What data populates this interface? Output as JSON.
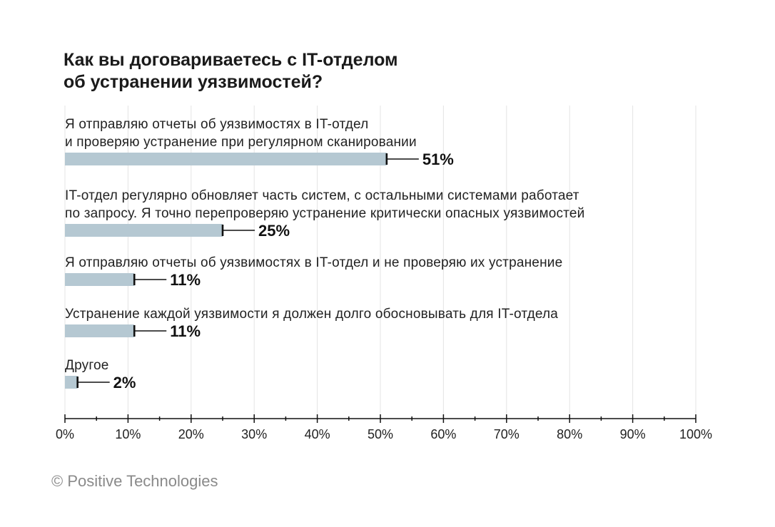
{
  "copyright": "© Positive Technologies",
  "chart_data": {
    "type": "bar",
    "orientation": "horizontal",
    "title_lines": [
      "Как вы договариваетесь с IT-отделом",
      "об устранении уязвимостей?"
    ],
    "categories": [
      [
        "Я отправляю отчеты об уязвимостях в IT-отдел",
        "и проверяю устранение при регулярном сканировании"
      ],
      [
        "IT-отдел регулярно обновляет часть систем, с остальными системами работает",
        "по запросу. Я точно перепроверяю устранение критически опасных уязвимостей"
      ],
      [
        "Я отправляю отчеты об уязвимостях в IT-отдел и не проверяю их устранение"
      ],
      [
        "Устранение каждой уязвимости я должен долго обосновывать для IT-отдела"
      ],
      [
        "Другое"
      ]
    ],
    "values": [
      51,
      25,
      11,
      11,
      2
    ],
    "value_labels": [
      "51%",
      "25%",
      "11%",
      "11%",
      "2%"
    ],
    "xlim": [
      0,
      100
    ],
    "x_ticks": [
      0,
      10,
      20,
      30,
      40,
      50,
      60,
      70,
      80,
      90,
      100
    ],
    "x_tick_labels": [
      "0%",
      "10%",
      "20%",
      "30%",
      "40%",
      "50%",
      "60%",
      "70%",
      "80%",
      "90%",
      "100%"
    ],
    "grid": true,
    "colors": {
      "bar": "#b5c8d2",
      "text": "#222222",
      "grid": "#e4e4e4",
      "axis": "#111111",
      "copyright": "#8a8a8a"
    }
  }
}
